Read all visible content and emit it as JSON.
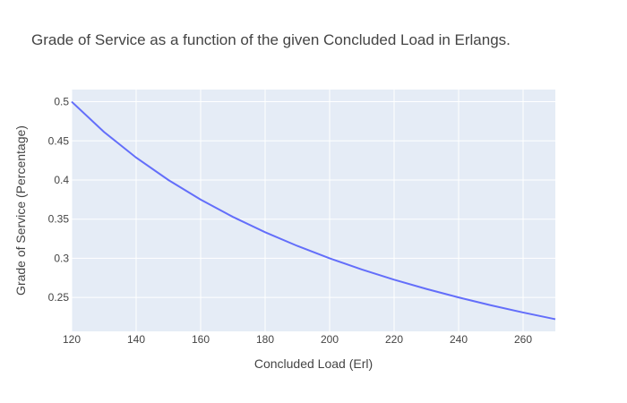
{
  "chart_data": {
    "type": "line",
    "title": "Grade of Service as a function of the given Concluded Load in Erlangs.",
    "xlabel": "Concluded Load (Erl)",
    "ylabel": "Grade of Service (Percentage)",
    "xlim": [
      120,
      270
    ],
    "ylim": [
      0.2067,
      0.5155
    ],
    "x_ticks": [
      120,
      140,
      160,
      180,
      200,
      220,
      240,
      260
    ],
    "x_tick_labels": [
      "120",
      "140",
      "160",
      "180",
      "200",
      "220",
      "240",
      "260"
    ],
    "y_ticks": [
      0.25,
      0.3,
      0.35,
      0.4,
      0.45,
      0.5
    ],
    "y_tick_labels": [
      "0.25",
      "0.3",
      "0.35",
      "0.4",
      "0.45",
      "0.5"
    ],
    "grid": true,
    "plot_bgcolor": "#e5ecf6",
    "series": [
      {
        "color": "#636efa",
        "x": [
          120,
          130,
          140,
          150,
          160,
          170,
          180,
          190,
          200,
          210,
          220,
          230,
          240,
          250,
          260,
          270
        ],
        "y": [
          0.5,
          0.4615,
          0.4286,
          0.4,
          0.375,
          0.3529,
          0.3333,
          0.3158,
          0.3,
          0.2857,
          0.2727,
          0.2609,
          0.25,
          0.24,
          0.2308,
          0.2222
        ]
      }
    ]
  }
}
